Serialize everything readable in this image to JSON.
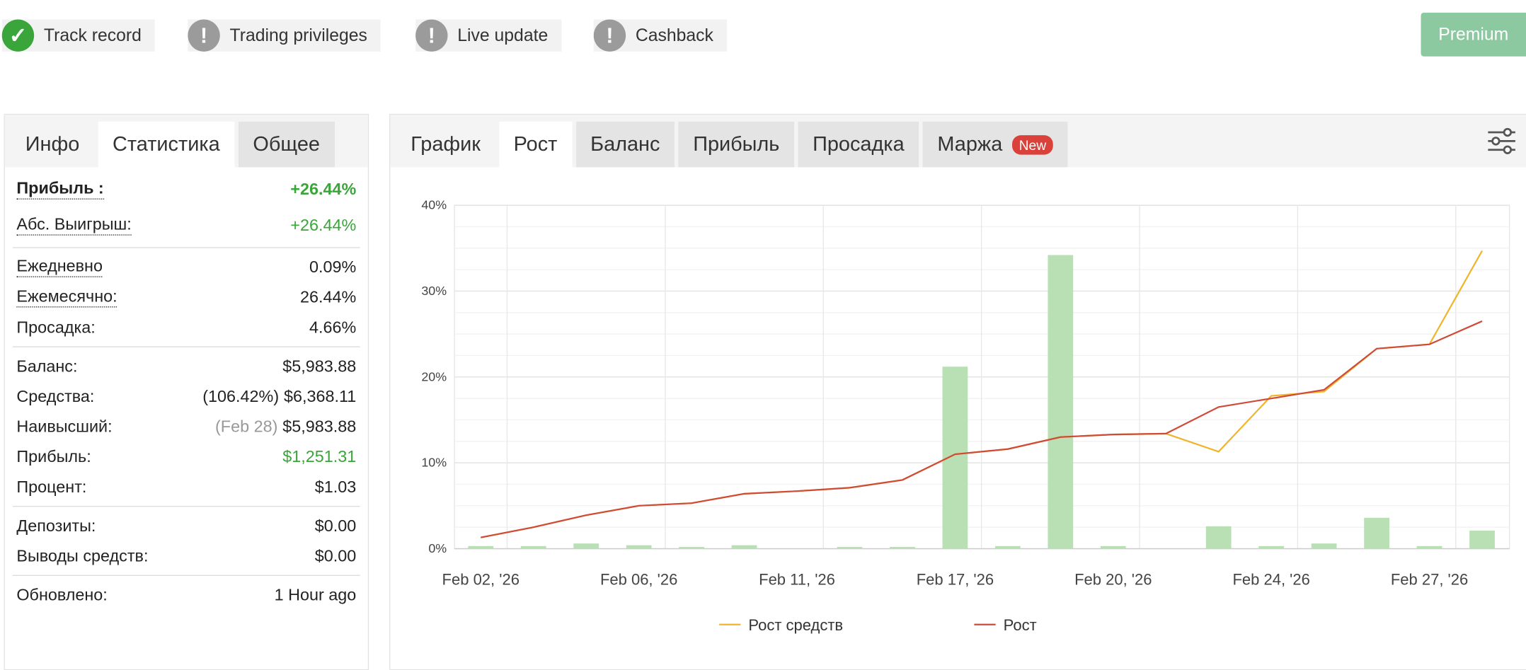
{
  "badges": [
    {
      "label": "Track record",
      "ok": true
    },
    {
      "label": "Trading privileges",
      "ok": false
    },
    {
      "label": "Live update",
      "ok": false
    },
    {
      "label": "Cashback",
      "ok": false
    }
  ],
  "premium": "Premium",
  "left_tabs": {
    "items": [
      "Инфо",
      "Статистика",
      "Общее"
    ],
    "active": 1
  },
  "chart_tabs": {
    "items": [
      "График",
      "Рост",
      "Баланс",
      "Прибыль",
      "Просадка",
      "Маржа"
    ],
    "active": 1,
    "new_badge": "New"
  },
  "stats": [
    [
      {
        "label": "Прибыль :",
        "value": "+26.44%",
        "color": "#3aa53a",
        "dotted": true,
        "bold": true
      },
      {
        "label": "Абс. Выигрыш:",
        "value": "+26.44%",
        "color": "#3aa53a",
        "dotted": true
      }
    ],
    [
      {
        "label": "Ежедневно",
        "value": "0.09%",
        "dotted": true
      },
      {
        "label": "Ежемесячно:",
        "value": "26.44%",
        "dotted": true
      },
      {
        "label": "Просадка:",
        "value": "4.66%"
      }
    ],
    [
      {
        "label": "Баланс:",
        "value": "$5,983.88"
      },
      {
        "label": "Средства:",
        "note": "(106.42%)",
        "value": "$6,368.11"
      },
      {
        "label": "Наивысший:",
        "note": "(Feb 28)",
        "note_color": "#999",
        "value": "$5,983.88"
      },
      {
        "label": "Прибыль:",
        "value": "$1,251.31",
        "color": "#3aa53a"
      },
      {
        "label": "Процент:",
        "value": "$1.03"
      }
    ],
    [
      {
        "label": "Депозиты:",
        "value": "$0.00"
      },
      {
        "label": "Выводы средств:",
        "value": "$0.00"
      }
    ],
    [
      {
        "label": "Обновлено:",
        "value": "1 Hour ago"
      }
    ]
  ],
  "chart_data": {
    "type": "bar-line",
    "categories": [
      "Feb 02, '26",
      null,
      null,
      "Feb 06, '26",
      null,
      null,
      "Feb 11, '26",
      null,
      null,
      "Feb 17, '26",
      null,
      null,
      "Feb 20, '26",
      null,
      null,
      "Feb 24, '26",
      null,
      null,
      "Feb 27, '26",
      null
    ],
    "series": [
      {
        "type": "bar",
        "color": "#b9dfb4",
        "values": [
          0.3,
          0.3,
          0.6,
          0.4,
          0.2,
          0.4,
          0,
          0.2,
          0.2,
          21.2,
          0.3,
          34.2,
          0.3,
          0,
          2.6,
          0.3,
          0.6,
          3.6,
          0.3,
          2.1
        ]
      },
      {
        "type": "line",
        "name": "Рост средств",
        "color": "#f0b429",
        "values": [
          1.3,
          2.5,
          3.9,
          5.0,
          5.3,
          6.4,
          6.7,
          7.1,
          8.0,
          11.0,
          11.6,
          13.0,
          13.3,
          13.4,
          11.3,
          17.8,
          18.3,
          23.3,
          23.8,
          34.7
        ]
      },
      {
        "type": "line",
        "name": "Рост",
        "color": "#d04a38",
        "values": [
          1.3,
          2.5,
          3.9,
          5.0,
          5.3,
          6.4,
          6.7,
          7.1,
          8.0,
          11.0,
          11.6,
          13.0,
          13.3,
          13.4,
          16.5,
          17.5,
          18.5,
          23.3,
          23.8,
          26.5
        ]
      }
    ],
    "ylim": [
      0,
      40
    ],
    "yticks": [
      {
        "value": 0,
        "label": "0%"
      },
      {
        "value": 10,
        "label": "10%"
      },
      {
        "value": 20,
        "label": "20%"
      },
      {
        "value": 30,
        "label": "30%"
      },
      {
        "value": 40,
        "label": "40%"
      }
    ],
    "grid": true
  }
}
